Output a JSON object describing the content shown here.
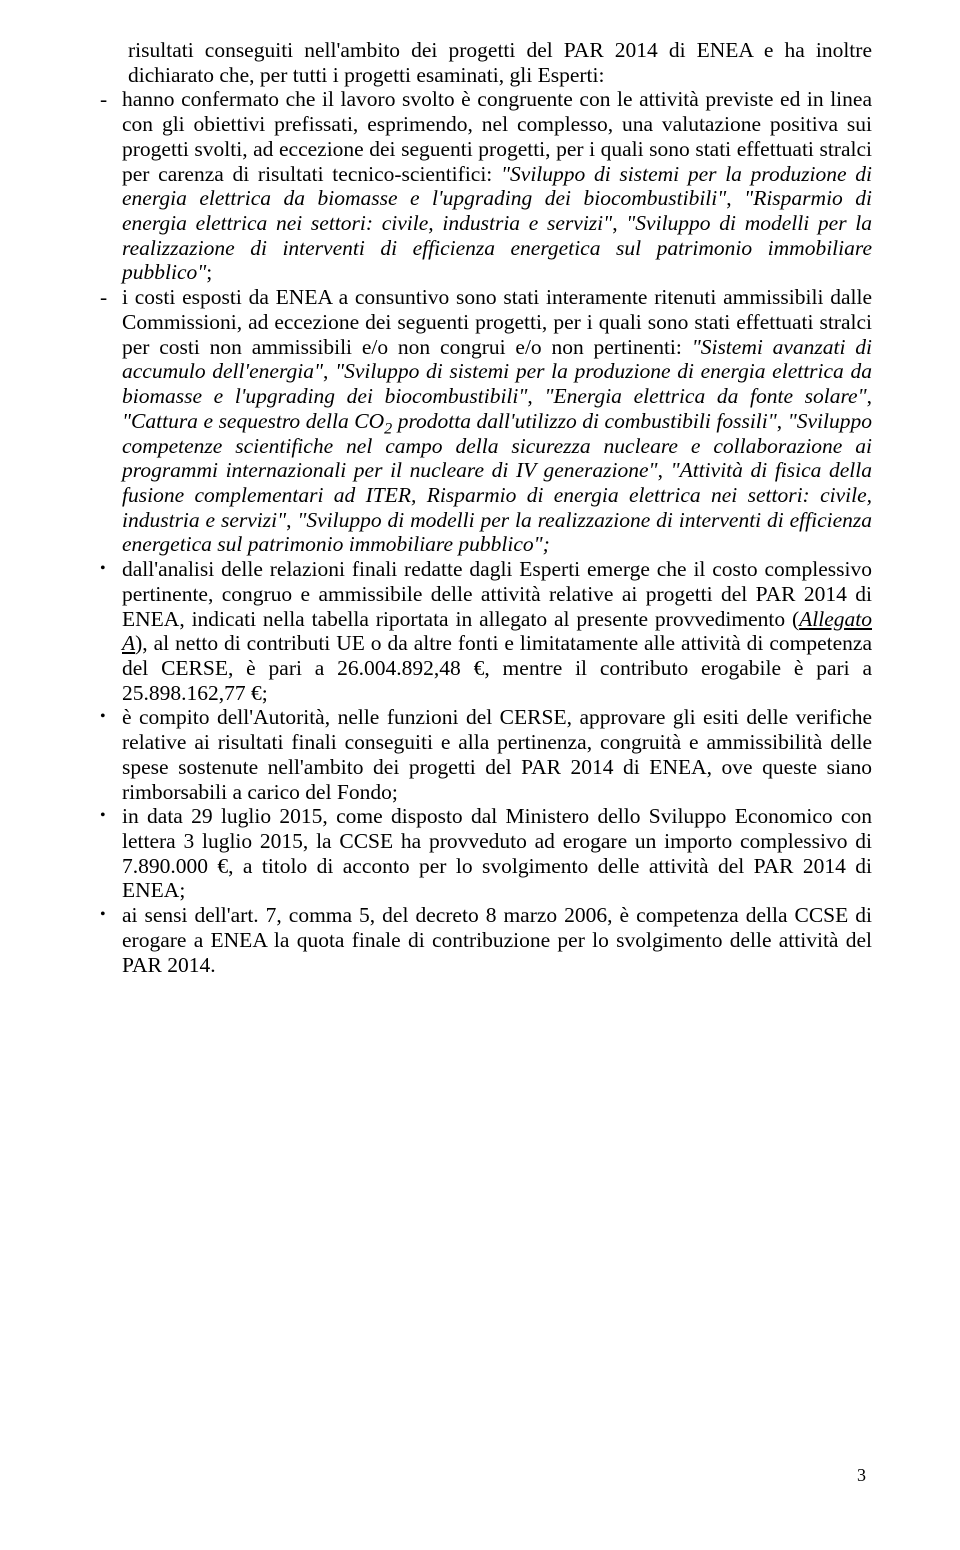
{
  "colors": {
    "text": "#000000",
    "background": "#ffffff"
  },
  "typography": {
    "font_family": "Times New Roman",
    "font_size_pt": 12,
    "line_height": 1.15,
    "alignment": "justify"
  },
  "intro": {
    "lead": "risultati conseguiti nell'ambito dei progetti del PAR 2014 di ENEA e ha inoltre dichiarato che, per tutti i progetti esaminati, gli Esperti:"
  },
  "dashes": [
    {
      "pre": "hanno confermato che il lavoro svolto è congruente con le attività previste ed in linea con gli obiettivi prefissati, esprimendo, nel complesso, una valutazione positiva sui progetti svolti, ad eccezione dei seguenti progetti, per i quali sono stati effettuati stralci per carenza di risultati tecnico-scientifici: ",
      "q1": "\"Sviluppo di sistemi per la produzione di energia elettrica da biomasse e l'upgrading dei biocombustibili\"",
      "mid1": ", ",
      "q2": "\"Risparmio di energia elettrica nei settori: civile, industria e servizi\"",
      "mid2": ", ",
      "q3": "\"Sviluppo di modelli per la realizzazione di interventi di efficienza energetica sul patrimonio immobiliare pubblico\"",
      "post": ";"
    },
    {
      "pre": "i costi esposti da ENEA a consuntivo sono stati interamente ritenuti ammissibili dalle Commissioni, ad eccezione dei seguenti progetti, per i quali sono stati effettuati stralci per costi non ammissibili e/o non congrui e/o non pertinenti: ",
      "q1": "\"Sistemi avanzati di accumulo dell'energia\"",
      "mid1": ", ",
      "q2": "\"Sviluppo di sistemi per la produzione di energia elettrica da biomasse e l'upgrading dei biocombustibili\"",
      "mid2": ", ",
      "q3": "\"Energia elettrica da fonte solare\"",
      "mid3": ", ",
      "q4": "\"Cattura e sequestro della CO",
      "q4_sub": "2",
      "q4_b": " prodotta dall'utilizzo di combustibili fossili\"",
      "mid4": ", ",
      "q5": "\"Sviluppo competenze scientifiche nel campo della sicurezza nucleare e collaborazione ai programmi internazionali per il nucleare di IV generazione\"",
      "mid5": ", ",
      "q6": "\"Attività di fisica della fusione complementari ad ITER, Risparmio di energia elettrica nei settori: civile, industria e servizi\"",
      "mid6": ", ",
      "q7": "\"Sviluppo di modelli per la realizzazione di interventi di efficienza energetica sul patrimonio immobiliare pubblico\";"
    }
  ],
  "bullets": [
    {
      "text_a": "dall'analisi delle relazioni finali redatte dagli Esperti emerge che il costo complessivo pertinente, congruo e ammissibile delle attività relative ai progetti del PAR 2014 di ENEA, indicati nella tabella riportata in allegato al presente provvedimento (",
      "alleg": "Allegato A",
      "text_b": "), al netto di contributi UE o da altre fonti e limitatamente alle attività di competenza del CERSE, è pari a 26.004.892,48 €, mentre il contributo erogabile è pari a 25.898.162,77 €;"
    },
    {
      "text": "è compito dell'Autorità, nelle funzioni del CERSE, approvare gli esiti delle verifiche relative ai risultati finali conseguiti e alla pertinenza, congruità e ammissibilità delle spese sostenute nell'ambito dei progetti del PAR 2014 di ENEA, ove queste siano rimborsabili a carico del Fondo;"
    },
    {
      "text": "in data 29 luglio 2015, come disposto dal Ministero dello Sviluppo Economico con lettera 3 luglio 2015, la CCSE ha provveduto ad erogare un importo complessivo di 7.890.000 €, a titolo di acconto per lo svolgimento delle attività del PAR 2014 di ENEA;"
    },
    {
      "text": "ai sensi dell'art. 7, comma 5, del decreto 8 marzo 2006, è competenza della CCSE di erogare a ENEA la quota finale di contribuzione per lo svolgimento delle attività del PAR 2014."
    }
  ],
  "page_number": "3"
}
